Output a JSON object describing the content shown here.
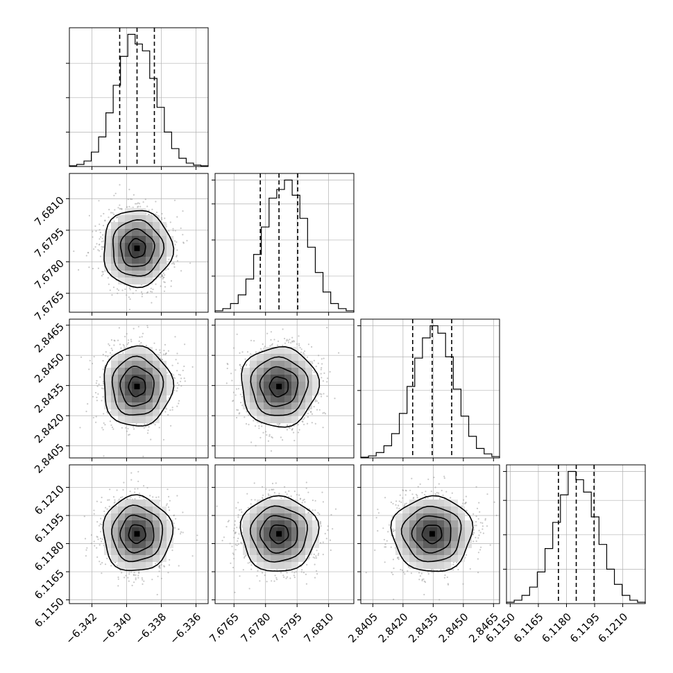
{
  "chart_data": {
    "type": "corner",
    "grid": true,
    "colors": {
      "hist": "#000000",
      "points": "#9a9a9a",
      "density": "#000000",
      "grid": "#b0b0b0"
    },
    "parameters": [
      {
        "range": [
          -6.3433,
          -6.3353
        ],
        "ticks": [
          -6.342,
          -6.34,
          -6.338,
          -6.336
        ],
        "tick_labels": [
          "−6.342",
          "−6.340",
          "−6.338",
          "−6.336"
        ],
        "quantiles": [
          -6.3404,
          -6.3394,
          -6.3384
        ],
        "mean": -6.3394,
        "sigma": 0.00097,
        "hist": [
          1,
          3,
          8,
          21,
          43,
          78,
          118,
          160,
          192,
          178,
          168,
          128,
          86,
          50,
          26,
          12,
          5,
          2,
          1
        ]
      },
      {
        "range": [
          7.6756,
          7.6822
        ],
        "ticks": [
          7.6765,
          7.678,
          7.6795,
          7.681
        ],
        "tick_labels": [
          "7.6765",
          "7.6780",
          "7.6795",
          "7.6810"
        ],
        "quantiles": [
          7.67775,
          7.67864,
          7.67953
        ],
        "mean": 7.67864,
        "sigma": 0.00089,
        "hist": [
          2,
          5,
          12,
          24,
          46,
          80,
          118,
          158,
          170,
          183,
          162,
          130,
          90,
          55,
          28,
          12,
          5,
          2
        ]
      },
      {
        "range": [
          2.8399,
          2.8468
        ],
        "ticks": [
          2.8405,
          2.842,
          2.8435,
          2.845,
          2.8465
        ],
        "tick_labels": [
          "2.8405",
          "2.8420",
          "2.8435",
          "2.8450",
          "2.8465"
        ],
        "quantiles": [
          2.84248,
          2.84345,
          2.84442
        ],
        "mean": 2.84345,
        "sigma": 0.00097,
        "hist": [
          1,
          3,
          8,
          18,
          36,
          66,
          106,
          148,
          178,
          196,
          185,
          150,
          102,
          62,
          32,
          14,
          6,
          2
        ]
      },
      {
        "range": [
          6.1148,
          6.1222
        ],
        "ticks": [
          6.115,
          6.1165,
          6.118,
          6.1195,
          6.121
        ],
        "tick_labels": [
          "6.1150",
          "6.1165",
          "6.1180",
          "6.1195",
          "6.1210"
        ],
        "quantiles": [
          6.11757,
          6.11852,
          6.11947
        ],
        "mean": 6.11852,
        "sigma": 0.00098,
        "hist": [
          2,
          5,
          12,
          24,
          46,
          80,
          118,
          158,
          192,
          180,
          162,
          126,
          86,
          50,
          28,
          12,
          5,
          2
        ]
      }
    ]
  }
}
